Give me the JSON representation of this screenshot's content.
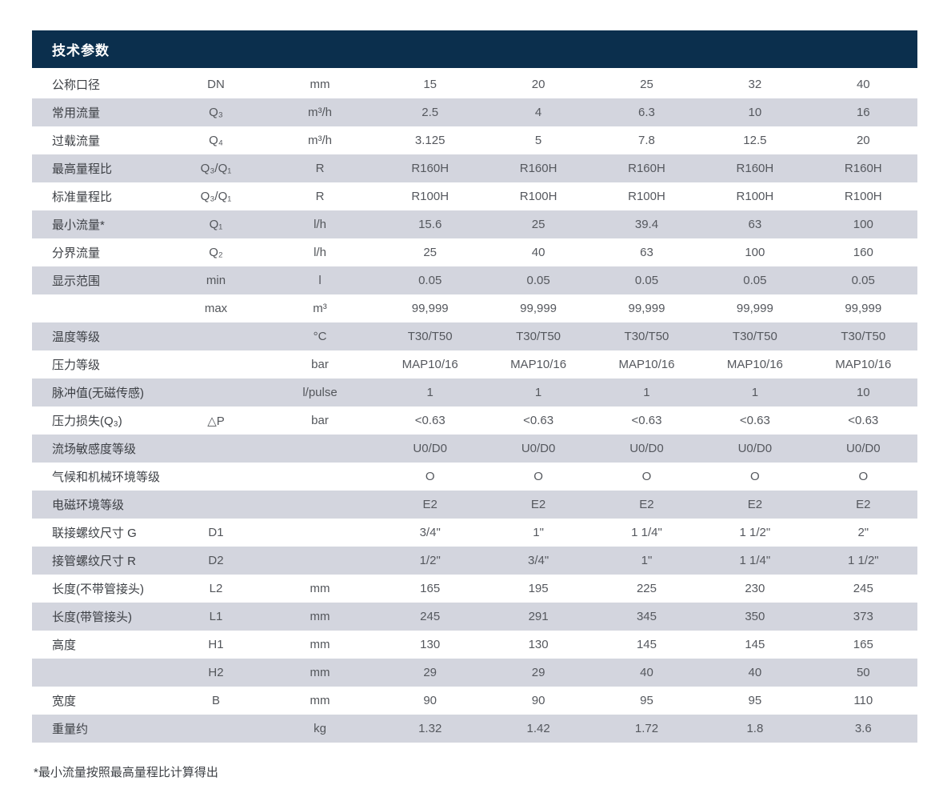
{
  "header": {
    "title": "技术参数"
  },
  "table": {
    "rows": [
      {
        "label": "公称口径",
        "symbol": "DN",
        "unit": "mm",
        "values": [
          "15",
          "20",
          "25",
          "32",
          "40"
        ]
      },
      {
        "label": "常用流量",
        "symbol": "Q₃",
        "unit": "m³/h",
        "values": [
          "2.5",
          "4",
          "6.3",
          "10",
          "16"
        ]
      },
      {
        "label": "过载流量",
        "symbol": "Q₄",
        "unit": "m³/h",
        "values": [
          "3.125",
          "5",
          "7.8",
          "12.5",
          "20"
        ]
      },
      {
        "label": "最高量程比",
        "symbol": "Q₃/Q₁",
        "unit": "R",
        "values": [
          "R160H",
          "R160H",
          "R160H",
          "R160H",
          "R160H"
        ]
      },
      {
        "label": "标准量程比",
        "symbol": "Q₃/Q₁",
        "unit": "R",
        "values": [
          "R100H",
          "R100H",
          "R100H",
          "R100H",
          "R100H"
        ]
      },
      {
        "label": "最小流量*",
        "symbol": "Q₁",
        "unit": "l/h",
        "values": [
          "15.6",
          "25",
          "39.4",
          "63",
          "100"
        ]
      },
      {
        "label": "分界流量",
        "symbol": "Q₂",
        "unit": "l/h",
        "values": [
          "25",
          "40",
          "63",
          "100",
          "160"
        ]
      },
      {
        "label": "显示范围",
        "symbol": "min",
        "unit": "l",
        "values": [
          "0.05",
          "0.05",
          "0.05",
          "0.05",
          "0.05"
        ]
      },
      {
        "label": "",
        "symbol": "max",
        "unit": "m³",
        "values": [
          "99,999",
          "99,999",
          "99,999",
          "99,999",
          "99,999"
        ]
      },
      {
        "label": "温度等级",
        "symbol": "",
        "unit": "°C",
        "values": [
          "T30/T50",
          "T30/T50",
          "T30/T50",
          "T30/T50",
          "T30/T50"
        ]
      },
      {
        "label": "压力等级",
        "symbol": "",
        "unit": "bar",
        "values": [
          "MAP10/16",
          "MAP10/16",
          "MAP10/16",
          "MAP10/16",
          "MAP10/16"
        ]
      },
      {
        "label": "脉冲值(无磁传感)",
        "symbol": "",
        "unit": "l/pulse",
        "values": [
          "1",
          "1",
          "1",
          "1",
          "10"
        ]
      },
      {
        "label": "压力损失(Q₃)",
        "symbol": "△P",
        "unit": "bar",
        "values": [
          "<0.63",
          "<0.63",
          "<0.63",
          "<0.63",
          "<0.63"
        ]
      },
      {
        "label": "流场敏感度等级",
        "symbol": "",
        "unit": "",
        "values": [
          "U0/D0",
          "U0/D0",
          "U0/D0",
          "U0/D0",
          "U0/D0"
        ]
      },
      {
        "label": "气候和机械环境等级",
        "symbol": "",
        "unit": "",
        "values": [
          "O",
          "O",
          "O",
          "O",
          "O"
        ]
      },
      {
        "label": "电磁环境等级",
        "symbol": "",
        "unit": "",
        "values": [
          "E2",
          "E2",
          "E2",
          "E2",
          "E2"
        ]
      },
      {
        "label": "联接螺纹尺寸 G",
        "symbol": "D1",
        "unit": "",
        "values": [
          "3/4\"",
          "1\"",
          "1 1/4\"",
          "1 1/2\"",
          "2\""
        ]
      },
      {
        "label": "接管螺纹尺寸 R",
        "symbol": "D2",
        "unit": "",
        "values": [
          "1/2\"",
          "3/4\"",
          "1\"",
          "1 1/4\"",
          "1 1/2\""
        ]
      },
      {
        "label": "长度(不带管接头)",
        "symbol": "L2",
        "unit": "mm",
        "values": [
          "165",
          "195",
          "225",
          "230",
          "245"
        ]
      },
      {
        "label": "长度(带管接头)",
        "symbol": "L1",
        "unit": "mm",
        "values": [
          "245",
          "291",
          "345",
          "350",
          "373"
        ]
      },
      {
        "label": "高度",
        "symbol": "H1",
        "unit": "mm",
        "values": [
          "130",
          "130",
          "145",
          "145",
          "165"
        ]
      },
      {
        "label": "",
        "symbol": "H2",
        "unit": "mm",
        "values": [
          "29",
          "29",
          "40",
          "40",
          "50"
        ]
      },
      {
        "label": "宽度",
        "symbol": "B",
        "unit": "mm",
        "values": [
          "90",
          "90",
          "95",
          "95",
          "110"
        ]
      },
      {
        "label": "重量约",
        "symbol": "",
        "unit": "kg",
        "values": [
          "1.32",
          "1.42",
          "1.72",
          "1.8",
          "3.6"
        ]
      }
    ]
  },
  "footnote": "*最小流量按照最高量程比计算得出",
  "colors": {
    "header_bg": "#0b2f4d",
    "header_text": "#ffffff",
    "row_stripe": "#d3d5de",
    "label_text": "#3d4045",
    "value_text": "#55585e"
  }
}
